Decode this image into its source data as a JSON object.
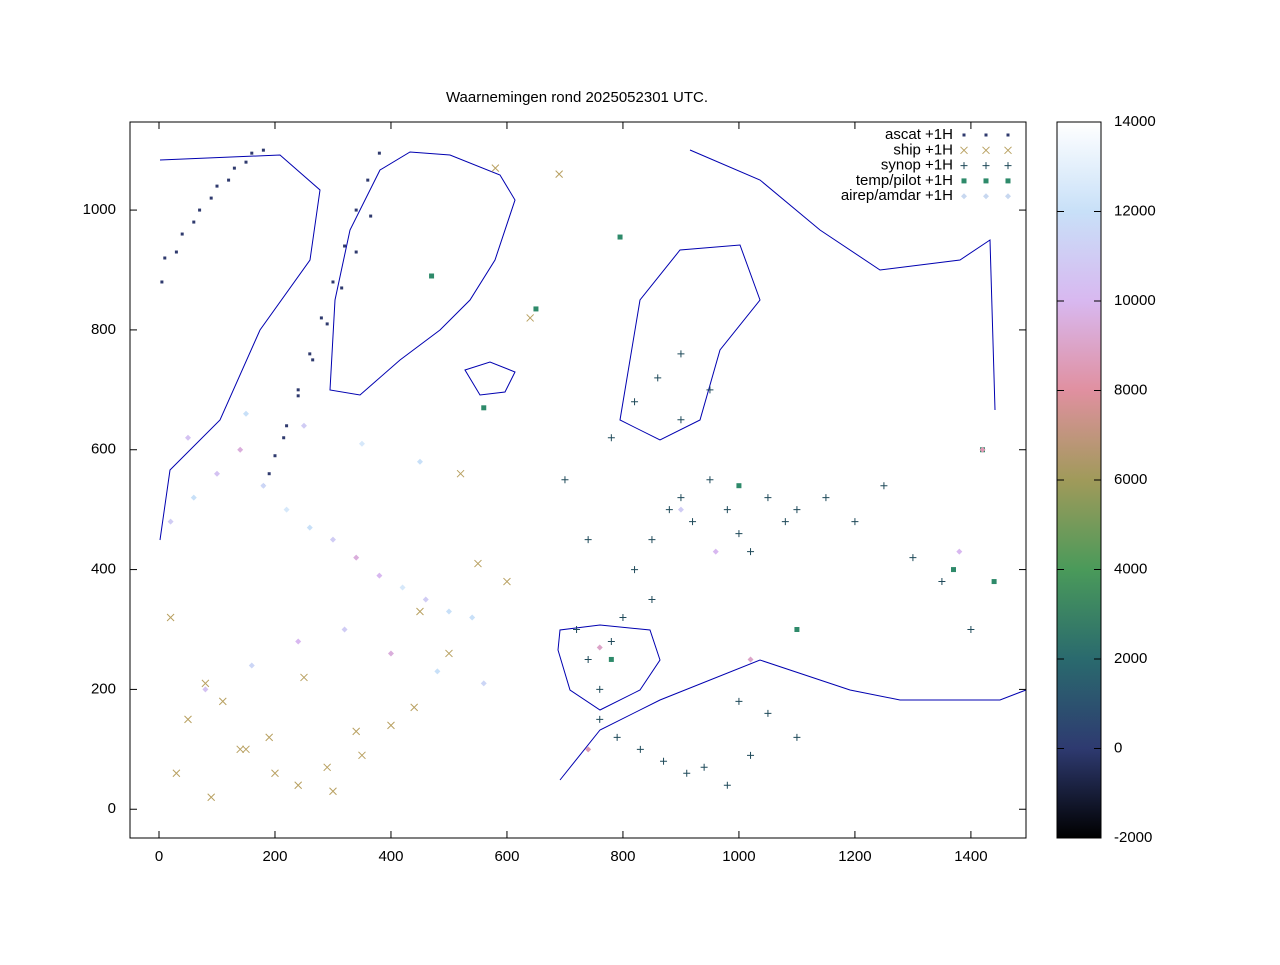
{
  "chart_data": {
    "type": "scatter",
    "title": "Waarnemingen rond 2025052301 UTC.",
    "xlim": [
      -50,
      1495
    ],
    "ylim": [
      -48,
      1147
    ],
    "xticks": [
      0,
      200,
      400,
      600,
      800,
      1000,
      1200,
      1400
    ],
    "yticks": [
      0,
      200,
      400,
      600,
      800,
      1000
    ],
    "zlim": [
      -2000,
      14000
    ],
    "zticks": [
      -2000,
      0,
      2000,
      4000,
      6000,
      8000,
      10000,
      12000,
      14000
    ],
    "colormap": [
      "#000000",
      "#2e3a70",
      "#2a6a6e",
      "#4a9a5a",
      "#a09a5a",
      "#e090a0",
      "#d8b8f0",
      "#c8e0f8",
      "#ffffff"
    ],
    "legend": "top-right",
    "series": [
      {
        "name": "ascat +1H",
        "marker": "dot",
        "color": "#2f3a6e",
        "x": [
          5,
          30,
          60,
          90,
          120,
          150,
          180,
          10,
          40,
          70,
          100,
          130,
          160,
          180,
          200,
          220,
          240,
          260,
          280,
          300,
          320,
          340,
          360,
          380,
          190,
          215,
          240,
          265,
          290,
          315,
          340,
          365
        ],
        "y": [
          880,
          930,
          980,
          1020,
          1050,
          1080,
          1100,
          920,
          960,
          1000,
          1040,
          1070,
          1095,
          540,
          590,
          640,
          700,
          760,
          820,
          880,
          940,
          1000,
          1050,
          1095,
          560,
          620,
          690,
          750,
          810,
          870,
          930,
          990
        ]
      },
      {
        "name": "ship +1H",
        "marker": "x",
        "color": "#b8a060",
        "x": [
          20,
          50,
          80,
          110,
          150,
          200,
          250,
          300,
          350,
          400,
          450,
          500,
          550,
          600,
          30,
          90,
          140,
          190,
          240,
          290,
          340,
          440,
          520,
          580,
          640,
          690
        ],
        "y": [
          320,
          150,
          210,
          180,
          100,
          60,
          220,
          30,
          90,
          140,
          330,
          260,
          410,
          380,
          60,
          20,
          100,
          120,
          40,
          70,
          130,
          170,
          560,
          1070,
          820,
          1060
        ]
      },
      {
        "name": "synop +1H",
        "marker": "plus",
        "color": "#1f4a5a",
        "x": [
          720,
          740,
          760,
          780,
          800,
          820,
          850,
          880,
          900,
          920,
          950,
          980,
          1000,
          1020,
          1050,
          1080,
          1100,
          760,
          790,
          830,
          870,
          910,
          940,
          980,
          1020,
          780,
          820,
          860,
          900,
          700,
          740,
          1150,
          1200,
          1250,
          1300,
          1350,
          1400,
          1000,
          1050,
          1100,
          850,
          900,
          950
        ],
        "y": [
          300,
          250,
          200,
          280,
          320,
          400,
          450,
          500,
          520,
          480,
          550,
          500,
          460,
          430,
          520,
          480,
          500,
          150,
          120,
          100,
          80,
          60,
          70,
          40,
          90,
          620,
          680,
          720,
          760,
          550,
          450,
          520,
          480,
          540,
          420,
          380,
          300,
          180,
          160,
          120,
          350,
          650,
          700
        ]
      },
      {
        "name": "temp/pilot +1H",
        "marker": "square",
        "color": "#2e8a6a",
        "x": [
          795,
          650,
          780,
          1420,
          1370,
          1440,
          1100,
          470,
          560,
          1000
        ],
        "y": [
          955,
          835,
          250,
          600,
          400,
          380,
          300,
          890,
          670,
          540
        ]
      },
      {
        "name": "airep/amdar +1H",
        "marker": "diamond",
        "color": "#c8d8f0",
        "x": [
          20,
          60,
          100,
          140,
          180,
          220,
          260,
          300,
          340,
          380,
          420,
          460,
          500,
          540,
          80,
          160,
          240,
          320,
          400,
          480,
          560,
          50,
          150,
          250,
          350,
          450,
          900,
          960,
          1020,
          1380,
          1420,
          760,
          740
        ],
        "y": [
          480,
          520,
          560,
          600,
          540,
          500,
          470,
          450,
          420,
          390,
          370,
          350,
          330,
          320,
          200,
          240,
          280,
          300,
          260,
          230,
          210,
          620,
          660,
          640,
          610,
          580,
          500,
          430,
          250,
          430,
          600,
          270,
          100
        ],
        "z": [
          11000,
          12000,
          10500,
          9500,
          11500,
          12500,
          12000,
          11000,
          9500,
          10000,
          12500,
          11000,
          12000,
          12000,
          10500,
          11500,
          10000,
          11000,
          9500,
          12000,
          11500,
          10500,
          12000,
          11000,
          12500,
          12000,
          11000,
          10000,
          9000,
          10000,
          8500,
          9000,
          8500
        ]
      }
    ]
  }
}
